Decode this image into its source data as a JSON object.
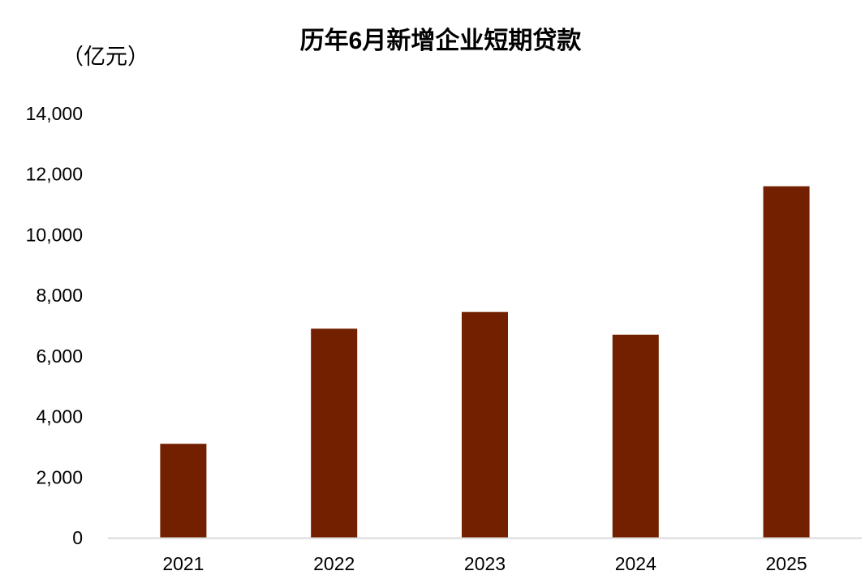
{
  "chart_data": {
    "type": "bar",
    "title": "历年6月新增企业短期贷款",
    "ylabel": "（亿元）",
    "xlabel": "",
    "categories": [
      "2021",
      "2022",
      "2023",
      "2024",
      "2025"
    ],
    "values": [
      3100,
      6900,
      7450,
      6700,
      11600
    ],
    "ylim": [
      0,
      14000
    ],
    "yticks": [
      0,
      2000,
      4000,
      6000,
      8000,
      10000,
      12000,
      14000
    ],
    "ytick_labels": [
      "0",
      "2,000",
      "4,000",
      "6,000",
      "8,000",
      "10,000",
      "12,000",
      "14,000"
    ],
    "grid": false,
    "legend": "none",
    "colors": {
      "bar": "#722000",
      "axis": "#d9d9d9",
      "text": "#000000"
    }
  }
}
